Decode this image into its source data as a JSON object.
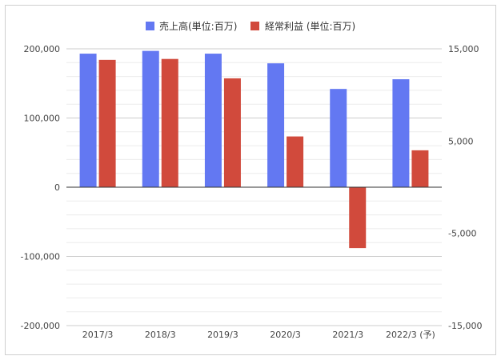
{
  "colors": {
    "sales": "#6378f2",
    "profit": "#d14a3c",
    "gridMajor": "#cccccc",
    "gridMinor": "#ebebeb",
    "zeroLine": "#333333"
  },
  "legend": {
    "sales_label": "売上高(単位:百万)",
    "profit_label": "経常利益 (単位:百万)",
    "position": "top"
  },
  "chart_data": {
    "type": "bar",
    "categories": [
      "2017/3",
      "2018/3",
      "2019/3",
      "2020/3",
      "2021/3",
      "2022/3 (予)"
    ],
    "series": [
      {
        "name": "売上高(単位:百万)",
        "axis": "left",
        "values": [
          193000,
          197000,
          193000,
          179000,
          142000,
          156000
        ]
      },
      {
        "name": "経常利益 (単位:百万)",
        "axis": "right",
        "values": [
          13800,
          13900,
          11800,
          5500,
          -6600,
          4000
        ]
      }
    ],
    "left_axis": {
      "ylim": [
        -200000,
        200000
      ],
      "ticks": [
        "200,000",
        "100,000",
        "0",
        "-100,000",
        "-200,000"
      ]
    },
    "right_axis": {
      "ylim": [
        -15000,
        15000
      ],
      "ticks": [
        "15,000",
        "5,000",
        "-5,000",
        "-15,000"
      ]
    },
    "grid": true
  }
}
